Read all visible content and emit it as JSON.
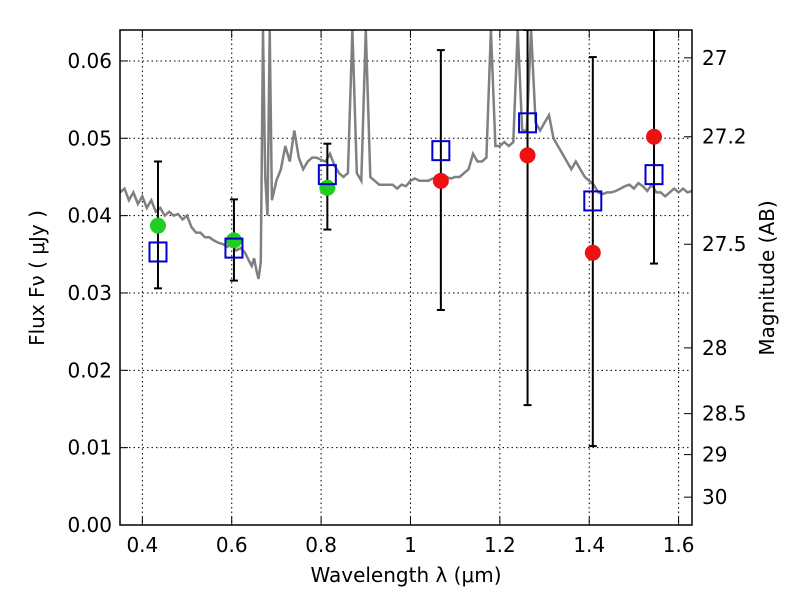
{
  "chart_data": {
    "type": "scatter",
    "xlabel": "Wavelength  λ (μm)",
    "ylabel": "Flux  Fν  ( μJy )",
    "y2label": "Magnitude (AB)",
    "xlim": [
      0.35,
      1.63
    ],
    "ylim": [
      0.0,
      0.064
    ],
    "grid": true,
    "x_ticks": [
      0.4,
      0.6,
      0.8,
      1.0,
      1.2,
      1.4,
      1.6
    ],
    "x_tick_labels": [
      "0.4",
      "0.6",
      "0.8",
      "1",
      "1.2",
      "1.4",
      "1.6"
    ],
    "y_ticks": [
      0.0,
      0.01,
      0.02,
      0.03,
      0.04,
      0.05,
      0.06
    ],
    "y_tick_labels": [
      "0.00",
      "0.01",
      "0.02",
      "0.03",
      "0.04",
      "0.05",
      "0.06"
    ],
    "y2_ticks": [
      {
        "label": "27",
        "flux": 0.0604
      },
      {
        "label": "27.2",
        "flux": 0.0502
      },
      {
        "label": "27.5",
        "flux": 0.0363
      },
      {
        "label": "28",
        "flux": 0.0229
      },
      {
        "label": "28.5",
        "flux": 0.0144
      },
      {
        "label": "29",
        "flux": 0.0091
      },
      {
        "label": "30",
        "flux": 0.0036
      }
    ],
    "series": [
      {
        "marker": "square-open",
        "color": "#0000cc",
        "points": [
          {
            "x": 0.435,
            "y": 0.0353,
            "yerr_low": 0.0306,
            "yerr_high": 0.047
          },
          {
            "x": 0.605,
            "y": 0.0358,
            "yerr_low": 0.0316,
            "yerr_high": 0.0421
          },
          {
            "x": 0.814,
            "y": 0.0453,
            "yerr_low": 0.0382,
            "yerr_high": 0.0493
          },
          {
            "x": 1.068,
            "y": 0.0484,
            "yerr_low": 0.0278,
            "yerr_high": 0.0614
          },
          {
            "x": 1.262,
            "y": 0.052,
            "yerr_low": 0.0155,
            "yerr_high": 0.064
          },
          {
            "x": 1.408,
            "y": 0.0419,
            "yerr_low": 0.0102,
            "yerr_high": 0.0605
          },
          {
            "x": 1.545,
            "y": 0.0453,
            "yerr_low": 0.0338,
            "yerr_high": 0.064
          }
        ]
      },
      {
        "marker": "circle",
        "color": "#22cc22",
        "points": [
          {
            "x": 0.435,
            "y": 0.0387
          },
          {
            "x": 0.605,
            "y": 0.0368
          },
          {
            "x": 0.814,
            "y": 0.0436
          }
        ]
      },
      {
        "marker": "circle",
        "color": "#ee1111",
        "points": [
          {
            "x": 1.068,
            "y": 0.0445
          },
          {
            "x": 1.262,
            "y": 0.0478
          },
          {
            "x": 1.408,
            "y": 0.0352
          },
          {
            "x": 1.545,
            "y": 0.0502
          }
        ]
      }
    ],
    "spectrum": {
      "color": "#808080",
      "x": [
        0.35,
        0.36,
        0.37,
        0.38,
        0.39,
        0.4,
        0.41,
        0.42,
        0.43,
        0.44,
        0.45,
        0.46,
        0.47,
        0.48,
        0.49,
        0.5,
        0.51,
        0.52,
        0.53,
        0.54,
        0.55,
        0.56,
        0.57,
        0.58,
        0.59,
        0.6,
        0.61,
        0.62,
        0.63,
        0.64,
        0.645,
        0.65,
        0.655,
        0.66,
        0.665,
        0.67,
        0.675,
        0.68,
        0.685,
        0.69,
        0.7,
        0.71,
        0.72,
        0.73,
        0.74,
        0.75,
        0.76,
        0.77,
        0.78,
        0.79,
        0.8,
        0.81,
        0.82,
        0.83,
        0.84,
        0.85,
        0.86,
        0.87,
        0.88,
        0.89,
        0.9,
        0.91,
        0.92,
        0.93,
        0.94,
        0.95,
        0.96,
        0.97,
        0.98,
        0.99,
        1.0,
        1.01,
        1.02,
        1.03,
        1.04,
        1.05,
        1.06,
        1.07,
        1.08,
        1.09,
        1.1,
        1.11,
        1.12,
        1.13,
        1.14,
        1.15,
        1.16,
        1.17,
        1.18,
        1.19,
        1.2,
        1.21,
        1.22,
        1.23,
        1.24,
        1.25,
        1.26,
        1.27,
        1.28,
        1.29,
        1.3,
        1.31,
        1.32,
        1.33,
        1.34,
        1.35,
        1.36,
        1.37,
        1.38,
        1.39,
        1.4,
        1.41,
        1.42,
        1.43,
        1.44,
        1.45,
        1.46,
        1.47,
        1.48,
        1.49,
        1.5,
        1.51,
        1.52,
        1.53,
        1.54,
        1.55,
        1.56,
        1.57,
        1.58,
        1.59,
        1.6,
        1.61,
        1.62,
        1.63
      ],
      "y": [
        0.043,
        0.0435,
        0.042,
        0.043,
        0.0415,
        0.0425,
        0.041,
        0.042,
        0.0405,
        0.041,
        0.04,
        0.0405,
        0.04,
        0.0402,
        0.0395,
        0.04,
        0.0385,
        0.0378,
        0.0378,
        0.0372,
        0.0372,
        0.0368,
        0.0365,
        0.0363,
        0.036,
        0.0362,
        0.0355,
        0.0358,
        0.0352,
        0.034,
        0.0335,
        0.0345,
        0.033,
        0.0318,
        0.034,
        0.064,
        0.045,
        0.04,
        0.064,
        0.042,
        0.0445,
        0.046,
        0.049,
        0.047,
        0.051,
        0.0475,
        0.046,
        0.047,
        0.0475,
        0.0475,
        0.0472,
        0.047,
        0.048,
        0.0465,
        0.0455,
        0.045,
        0.0455,
        0.064,
        0.0455,
        0.0445,
        0.064,
        0.045,
        0.0445,
        0.044,
        0.044,
        0.044,
        0.044,
        0.0435,
        0.044,
        0.0438,
        0.0445,
        0.0448,
        0.0445,
        0.0445,
        0.0445,
        0.0448,
        0.0448,
        0.0448,
        0.045,
        0.0448,
        0.045,
        0.045,
        0.0455,
        0.046,
        0.048,
        0.047,
        0.047,
        0.0475,
        0.064,
        0.049,
        0.049,
        0.0495,
        0.049,
        0.0495,
        0.064,
        0.051,
        0.051,
        0.064,
        0.052,
        0.051,
        0.052,
        0.053,
        0.05,
        0.049,
        0.048,
        0.047,
        0.046,
        0.047,
        0.046,
        0.045,
        0.0445,
        0.044,
        0.043,
        0.0428,
        0.043,
        0.043,
        0.0432,
        0.0435,
        0.0438,
        0.044,
        0.0435,
        0.0442,
        0.0438,
        0.0432,
        0.044,
        0.043,
        0.043,
        0.0425,
        0.043,
        0.0435,
        0.043,
        0.0435,
        0.043,
        0.0432
      ]
    }
  }
}
